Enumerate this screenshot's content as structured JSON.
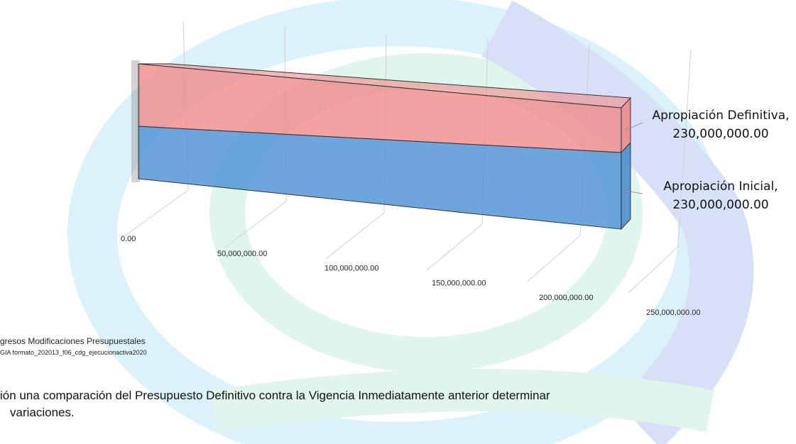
{
  "chart_data": {
    "type": "bar3d",
    "orientation": "horizontal",
    "series": [
      {
        "name": "Apropiación Inicial,",
        "color": "#4a8fd4",
        "values": [
          230000000
        ],
        "value_labels": [
          "230,000,000.00"
        ]
      },
      {
        "name": "Apropiación Definitiva,",
        "color": "#f08a8a",
        "values": [
          230000000
        ],
        "value_labels": [
          "230,000,000.00"
        ]
      }
    ],
    "xlim": [
      0,
      250000000
    ],
    "xticks": [
      {
        "value": 0,
        "label": "0.00"
      },
      {
        "value": 50000000,
        "label": "50,000,000.00"
      },
      {
        "value": 100000000,
        "label": "100,000,000.00"
      },
      {
        "value": 150000000,
        "label": "150,000,000.00"
      },
      {
        "value": 200000000,
        "label": "200,000,000.00"
      },
      {
        "value": 250000000,
        "label": "250,000,000.00"
      }
    ],
    "grid": true
  },
  "footnote": {
    "source": "gresos Modificaciones Presupuestales",
    "file": "GIA formato_202013_f06_cdg_ejecucionactiva2020"
  },
  "body": {
    "lines": [
      "ión una comparación del Presupuesto Definitivo contra la Vigencia Inmediatamente anterior determinar",
      "variaciones."
    ]
  }
}
